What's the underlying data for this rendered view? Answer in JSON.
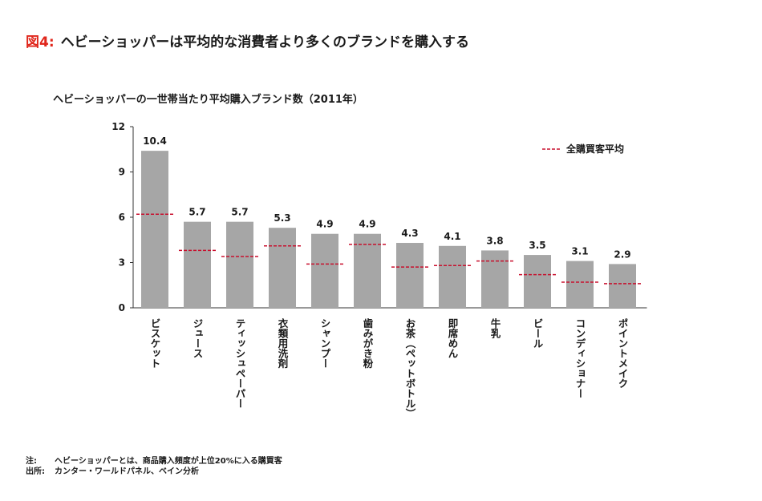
{
  "figure": {
    "number": "図4:",
    "title": "ヘビーショッパーは平均的な消費者より多くのブランドを購入する"
  },
  "chart_data": {
    "type": "bar",
    "title": "ヘビーショッパーの一世帯当たり平均購入ブランド数（2011年）",
    "xlabel": "",
    "ylabel": "",
    "ylim": [
      0,
      12
    ],
    "yticks": [
      0,
      3,
      6,
      9,
      12
    ],
    "grid": false,
    "legend_position": "top-right",
    "colors": {
      "bar": "#a6a6a6",
      "average_line": "#c8102e",
      "axis": "#333333"
    },
    "categories": [
      "ビスケット",
      "ジュース",
      "ティッシュペーパー",
      "衣類用洗剤",
      "シャンプー",
      "歯みがき粉",
      "お茶（ペットボトル）",
      "即席めん",
      "牛乳",
      "ビール",
      "コンディショナー",
      "ポイントメイク"
    ],
    "series": [
      {
        "type": "bar",
        "values": [
          10.4,
          5.7,
          5.7,
          5.3,
          4.9,
          4.9,
          4.3,
          4.1,
          3.8,
          3.5,
          3.1,
          2.9
        ]
      },
      {
        "name": "全購買客平均",
        "type": "dashed-marker",
        "values": [
          6.2,
          3.8,
          3.4,
          4.1,
          2.9,
          4.2,
          2.7,
          2.8,
          3.1,
          2.2,
          1.7,
          1.6
        ]
      }
    ],
    "value_labels": [
      "10.4",
      "5.7",
      "5.7",
      "5.3",
      "4.9",
      "4.9",
      "4.3",
      "4.1",
      "3.8",
      "3.5",
      "3.1",
      "2.9"
    ]
  },
  "notes": [
    {
      "key": "注:",
      "text": "ヘビーショッパーとは、商品購入頻度が上位20%に入る購買客"
    },
    {
      "key": "出所:",
      "text": "カンター・ワールドパネル、ベイン分析"
    }
  ]
}
